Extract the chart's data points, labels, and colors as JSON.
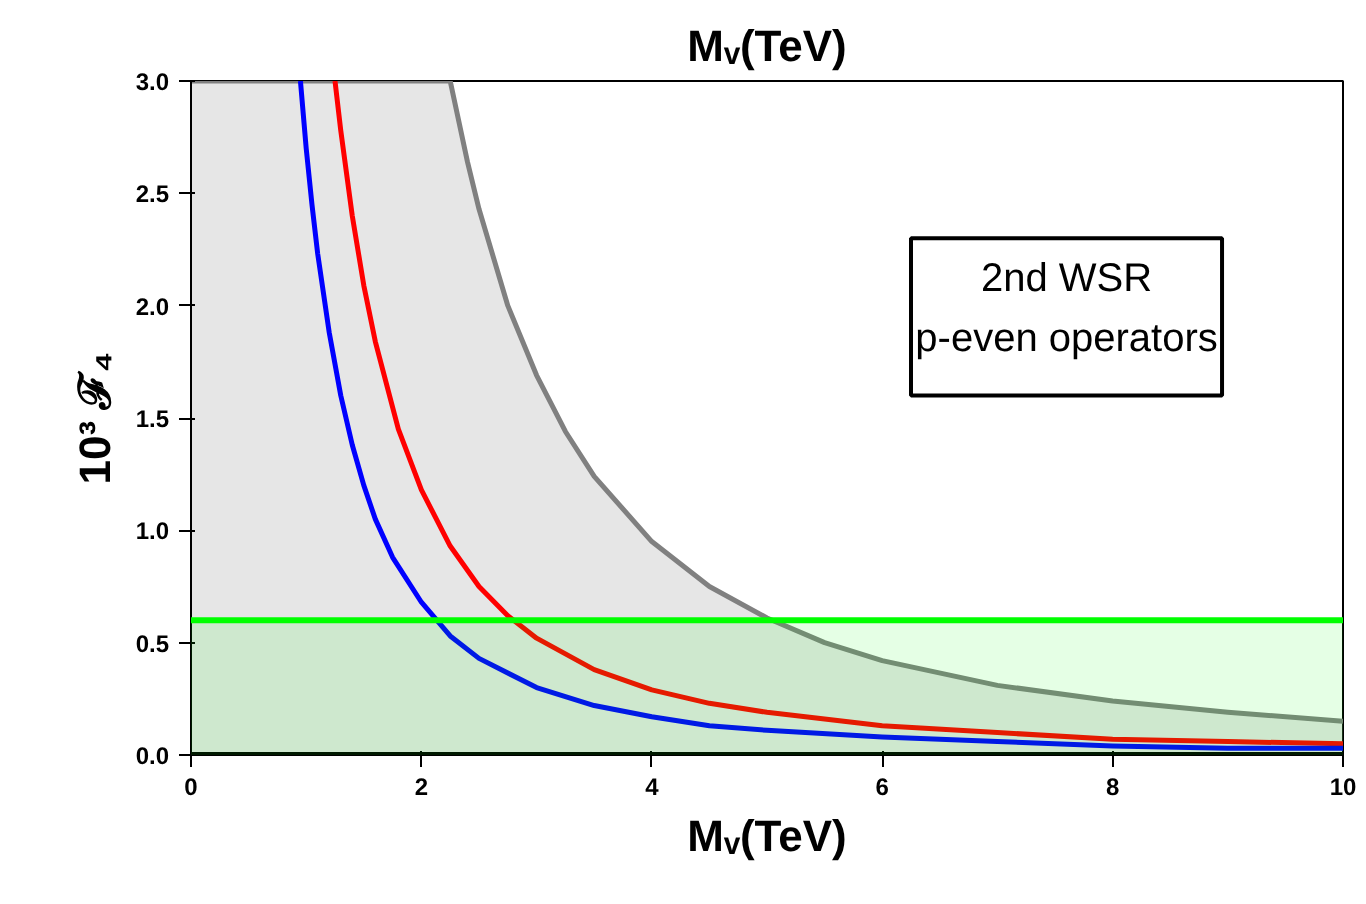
{
  "chart_data": {
    "type": "line",
    "xlabel": "Mᵥ(TeV)",
    "ylabel": "10³ ℱ₄",
    "xlim": [
      0,
      10
    ],
    "ylim": [
      0,
      3
    ],
    "xticks": [
      0,
      2,
      4,
      6,
      8,
      10
    ],
    "yticks": [
      {
        "value": 0,
        "label": "0.0"
      },
      {
        "value": 0.5,
        "label": "0.5"
      },
      {
        "value": 1,
        "label": "1.0"
      },
      {
        "value": 1.5,
        "label": "1.5"
      },
      {
        "value": 2,
        "label": "2.0"
      },
      {
        "value": 2.5,
        "label": "2.5"
      },
      {
        "value": 3,
        "label": "3.0"
      }
    ],
    "grid": false,
    "series": [
      {
        "type": "area",
        "color": "#808080",
        "x": [
          0,
          2.25,
          2.4,
          2.5,
          2.75,
          3,
          3.25,
          3.5,
          4,
          4.5,
          5,
          5.5,
          6,
          7,
          8,
          9,
          10
        ],
        "values": [
          3.0,
          3.0,
          2.64,
          2.43,
          2.0,
          1.69,
          1.44,
          1.24,
          0.95,
          0.75,
          0.61,
          0.5,
          0.42,
          0.31,
          0.24,
          0.19,
          0.15
        ]
      },
      {
        "color": "#ff0000",
        "x": [
          1.25,
          1.3,
          1.4,
          1.5,
          1.6,
          1.8,
          2,
          2.25,
          2.5,
          2.75,
          3,
          3.5,
          4,
          4.5,
          5,
          6,
          7,
          8,
          9,
          10
        ],
        "values": [
          3.0,
          2.78,
          2.4,
          2.09,
          1.84,
          1.45,
          1.18,
          0.93,
          0.75,
          0.62,
          0.52,
          0.38,
          0.29,
          0.23,
          0.19,
          0.13,
          0.1,
          0.07,
          0.06,
          0.05
        ]
      },
      {
        "color": "#0000ff",
        "x": [
          0.95,
          1,
          1.05,
          1.1,
          1.2,
          1.3,
          1.4,
          1.5,
          1.6,
          1.75,
          2,
          2.25,
          2.5,
          3,
          3.5,
          4,
          4.5,
          5,
          6,
          7,
          8,
          9,
          10
        ],
        "values": [
          3.0,
          2.7,
          2.45,
          2.23,
          1.88,
          1.6,
          1.38,
          1.2,
          1.05,
          0.88,
          0.68,
          0.53,
          0.43,
          0.3,
          0.22,
          0.17,
          0.13,
          0.11,
          0.08,
          0.06,
          0.04,
          0.03,
          0.03
        ]
      }
    ],
    "bands": [
      {
        "axis": "y",
        "from": 0,
        "to": 0.6,
        "color": "#00ff00"
      }
    ],
    "ref_lines": [
      {
        "axis": "y",
        "value": 0.6,
        "color": "#00ff00"
      }
    ],
    "annotations": [
      "2nd WSR\np-even operators",
      "Mᵥ(TeV)"
    ]
  }
}
